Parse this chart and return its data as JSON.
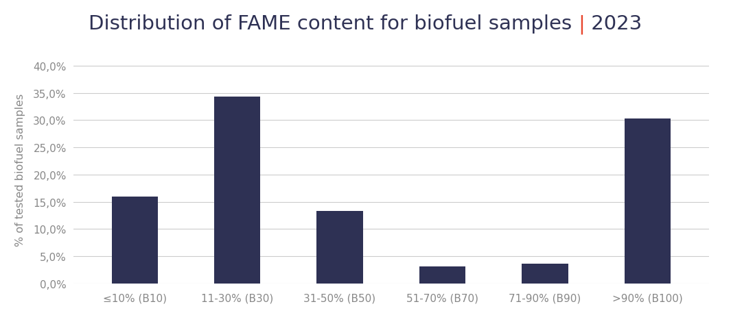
{
  "categories": [
    "≤10% (B10)",
    "11-30% (B30)",
    "31-50% (B50)",
    "51-70% (B70)",
    "71-90% (B90)",
    ">90% (B100)"
  ],
  "values": [
    0.16,
    0.344,
    0.133,
    0.031,
    0.036,
    0.303
  ],
  "bar_color": "#2E3154",
  "title_main": "Distribution of FAME content for biofuel samples ",
  "title_pipe": "|",
  "title_year": " 2023",
  "title_main_color": "#2E3154",
  "title_pipe_color": "#E8452C",
  "title_year_color": "#2E3154",
  "ylabel": "% of tested biofuel samples",
  "ylim": [
    0,
    0.42
  ],
  "yticks": [
    0.0,
    0.05,
    0.1,
    0.15,
    0.2,
    0.25,
    0.3,
    0.35,
    0.4
  ],
  "ytick_labels": [
    "0,0%",
    "5,0%",
    "10,0%",
    "15,0%",
    "20,0%",
    "25,0%",
    "30,0%",
    "35,0%",
    "40,0%"
  ],
  "background_color": "#FFFFFF",
  "grid_color": "#CCCCCC",
  "title_fontsize": 21,
  "axis_label_fontsize": 11.5,
  "tick_fontsize": 11
}
